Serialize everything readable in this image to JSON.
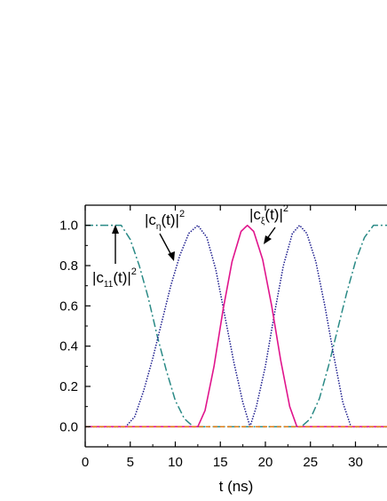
{
  "chart_data": {
    "type": "line",
    "title": "",
    "xlabel": "t (ns)",
    "ylabel": "",
    "xlim": [
      0,
      33.5
    ],
    "ylim": [
      -0.1,
      1.1
    ],
    "x_ticks": [
      "0",
      "5",
      "10",
      "15",
      "20",
      "25",
      "30"
    ],
    "y_ticks": [
      "0.0",
      "0.2",
      "0.4",
      "0.6",
      "0.8",
      "1.0"
    ],
    "grid": false,
    "series": [
      {
        "key": "c11",
        "style": "dash-dot",
        "color": "#2a8a86",
        "points": [
          [
            0,
            1.0
          ],
          [
            4.0,
            1.0
          ],
          [
            5.0,
            0.93
          ],
          [
            6.0,
            0.8
          ],
          [
            7.0,
            0.64
          ],
          [
            8.0,
            0.45
          ],
          [
            9.0,
            0.28
          ],
          [
            10.0,
            0.13
          ],
          [
            11.0,
            0.04
          ],
          [
            12.0,
            0.0
          ],
          [
            24.0,
            0.0
          ],
          [
            25.0,
            0.04
          ],
          [
            26.0,
            0.14
          ],
          [
            27.0,
            0.3
          ],
          [
            28.0,
            0.48
          ],
          [
            29.0,
            0.66
          ],
          [
            30.0,
            0.82
          ],
          [
            31.0,
            0.94
          ],
          [
            32.0,
            1.0
          ],
          [
            33.5,
            1.0
          ]
        ]
      },
      {
        "key": "ceta",
        "style": "dotted",
        "color": "#1a1a8c",
        "points": [
          [
            0,
            0.0
          ],
          [
            4.5,
            0.0
          ],
          [
            5.5,
            0.05
          ],
          [
            6.5,
            0.18
          ],
          [
            7.5,
            0.34
          ],
          [
            8.5,
            0.52
          ],
          [
            9.5,
            0.7
          ],
          [
            10.5,
            0.85
          ],
          [
            11.5,
            0.96
          ],
          [
            12.5,
            1.0
          ],
          [
            13.5,
            0.94
          ],
          [
            14.5,
            0.78
          ],
          [
            15.5,
            0.55
          ],
          [
            16.5,
            0.32
          ],
          [
            17.5,
            0.12
          ],
          [
            18.3,
            0.0
          ],
          [
            19.0,
            0.1
          ],
          [
            20.0,
            0.3
          ],
          [
            21.0,
            0.56
          ],
          [
            22.0,
            0.8
          ],
          [
            23.0,
            0.96
          ],
          [
            23.8,
            1.0
          ],
          [
            24.6,
            0.96
          ],
          [
            25.6,
            0.82
          ],
          [
            26.6,
            0.6
          ],
          [
            27.6,
            0.35
          ],
          [
            28.6,
            0.12
          ],
          [
            29.5,
            0.0
          ],
          [
            33.5,
            0.0
          ]
        ]
      },
      {
        "key": "cxi",
        "style": "solid",
        "color": "#e0148c",
        "points": [
          [
            0,
            0.0
          ],
          [
            12.5,
            0.0
          ],
          [
            13.3,
            0.08
          ],
          [
            14.3,
            0.3
          ],
          [
            15.3,
            0.58
          ],
          [
            16.3,
            0.82
          ],
          [
            17.3,
            0.97
          ],
          [
            18.0,
            1.0
          ],
          [
            18.7,
            0.97
          ],
          [
            19.7,
            0.83
          ],
          [
            20.7,
            0.6
          ],
          [
            21.7,
            0.33
          ],
          [
            22.7,
            0.1
          ],
          [
            23.5,
            0.0
          ],
          [
            33.5,
            0.0
          ]
        ]
      },
      {
        "key": "baseline",
        "style": "dashed",
        "color": "#e07a10",
        "points": [
          [
            0,
            0.0
          ],
          [
            33.5,
            0.0
          ]
        ]
      }
    ],
    "annotations": [
      {
        "key": "c11",
        "text": "|c",
        "sub": "11",
        "mid": "(t)|",
        "sup": "2"
      },
      {
        "key": "ceta",
        "text": "|c",
        "sub": "η",
        "mid": "(t)|",
        "sup": "2"
      },
      {
        "key": "cxi",
        "text": "|c",
        "sub": "ξ",
        "mid": "(t)|",
        "sup": "2"
      }
    ]
  }
}
